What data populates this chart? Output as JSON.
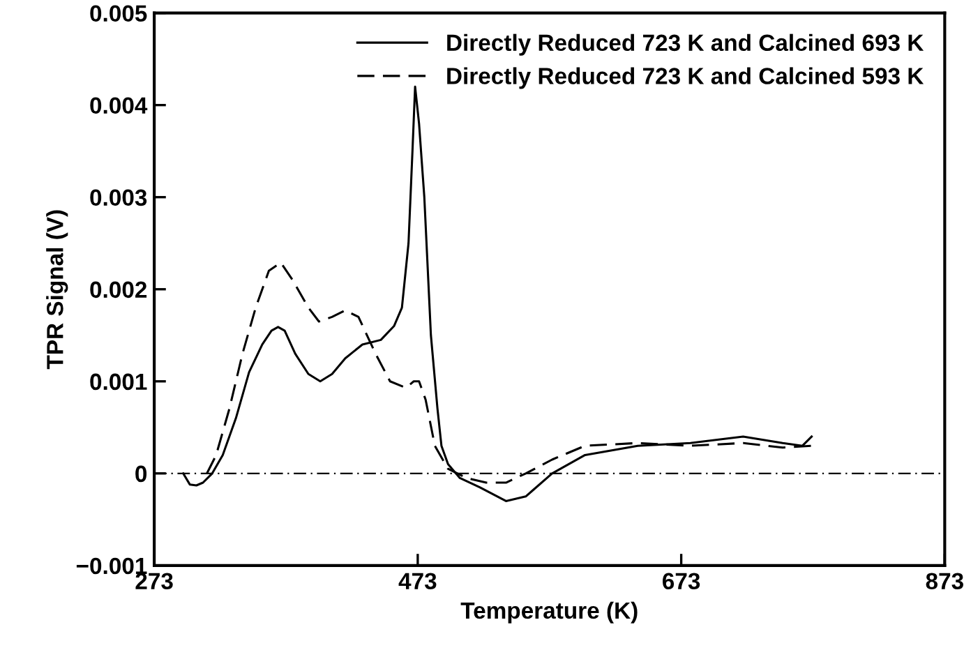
{
  "chart_data": {
    "type": "line",
    "xlabel": "Temperature (K)",
    "ylabel": "TPR Signal (V)",
    "xlim": [
      273,
      873
    ],
    "xticks": [
      273,
      473,
      673,
      873
    ],
    "ylim": [
      -0.001,
      0.005
    ],
    "yticks": [
      {
        "value": -0.001,
        "label": "−0.001"
      },
      {
        "value": 0,
        "label": "0"
      },
      0.001,
      0.002,
      0.003,
      0.004,
      0.005
    ],
    "grid": false,
    "legend": "top right",
    "ref_lines": [
      {
        "axis": "y",
        "value": 0,
        "color": "#000000",
        "line_style": "dashdot"
      }
    ],
    "series": [
      {
        "name": "Directly Reduced 723 K and Calcined 693 K",
        "color": "#000000",
        "line_style": "solid",
        "x": [
          295,
          300,
          305,
          310,
          317,
          325,
          335,
          345,
          355,
          362,
          367,
          372,
          380,
          390,
          399,
          408,
          418,
          431,
          445,
          455,
          461,
          466,
          469,
          471,
          474,
          478,
          483,
          488,
          491,
          496,
          505,
          520,
          540,
          555,
          575,
          600,
          640,
          680,
          720,
          750,
          765,
          772
        ],
        "values": [
          0,
          -0.00012,
          -0.00013,
          -0.0001,
          0,
          0.0002,
          0.0006,
          0.0011,
          0.0014,
          0.00155,
          0.00159,
          0.00155,
          0.0013,
          0.00108,
          0.001,
          0.00108,
          0.00125,
          0.0014,
          0.00145,
          0.0016,
          0.0018,
          0.0025,
          0.0035,
          0.0042,
          0.0038,
          0.003,
          0.0015,
          0.0007,
          0.0003,
          0.0001,
          -5e-05,
          -0.00015,
          -0.0003,
          -0.00025,
          0,
          0.0002,
          0.0003,
          0.00033,
          0.0004,
          0.00033,
          0.0003,
          0.0004
        ]
      },
      {
        "name": "Directly Reduced 723 K and Calcined 593 K",
        "color": "#000000",
        "line_style": "dashed",
        "x": [
          313,
          320,
          330,
          340,
          350,
          360,
          369,
          378,
          390,
          398,
          408,
          418,
          428,
          441,
          452,
          464,
          470,
          474,
          479,
          486,
          496,
          510,
          525,
          540,
          555,
          575,
          600,
          640,
          680,
          720,
          750,
          772
        ],
        "values": [
          0,
          0.0002,
          0.0007,
          0.0013,
          0.0018,
          0.0022,
          0.00229,
          0.0021,
          0.0018,
          0.00165,
          0.0017,
          0.00177,
          0.0017,
          0.0013,
          0.001,
          0.00093,
          0.001,
          0.001,
          0.0008,
          0.0003,
          5e-05,
          -5e-05,
          -0.0001,
          -0.0001,
          0,
          0.00015,
          0.0003,
          0.00033,
          0.0003,
          0.00033,
          0.00028,
          0.0003
        ]
      }
    ]
  }
}
